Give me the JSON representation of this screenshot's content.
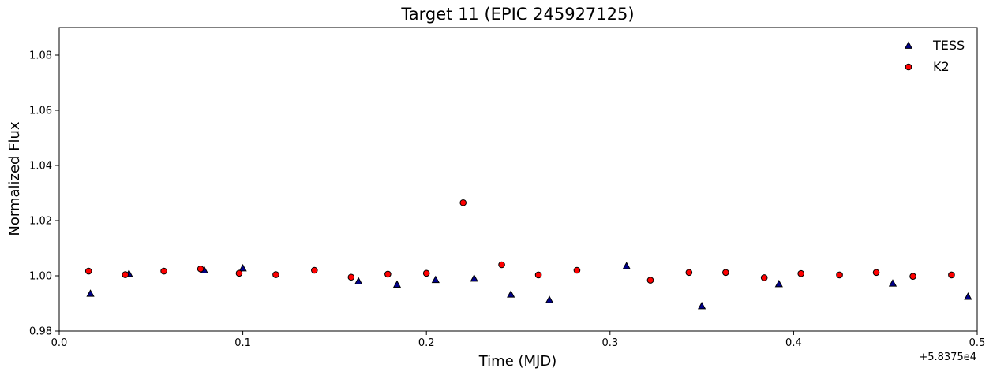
{
  "chart_data": {
    "type": "scatter",
    "title": "Target 11 (EPIC 245927125)",
    "xlabel": "Time (MJD)",
    "ylabel": "Normalized Flux",
    "x_offset_label": "+5.8375e4",
    "xlim": [
      0.0,
      0.5
    ],
    "ylim": [
      0.98,
      1.09
    ],
    "x_ticks": [
      0.0,
      0.1,
      0.2,
      0.3,
      0.4,
      0.5
    ],
    "x_tick_labels": [
      "0.0",
      "0.1",
      "0.2",
      "0.3",
      "0.4",
      "0.5"
    ],
    "y_ticks": [
      0.98,
      1.0,
      1.02,
      1.04,
      1.06,
      1.08
    ],
    "y_tick_labels": [
      "0.98",
      "1.00",
      "1.02",
      "1.04",
      "1.06",
      "1.08"
    ],
    "grid": false,
    "legend_position": "top-right",
    "series": [
      {
        "name": "TESS",
        "marker": "triangle",
        "color": "#00008b",
        "edge_color": "#000000",
        "x": [
          0.017,
          0.038,
          0.079,
          0.1,
          0.163,
          0.184,
          0.205,
          0.226,
          0.246,
          0.267,
          0.309,
          0.35,
          0.392,
          0.454,
          0.495
        ],
        "y": [
          0.9935,
          1.0007,
          1.002,
          1.0027,
          0.998,
          0.9968,
          0.9985,
          0.999,
          0.9932,
          0.9912,
          1.0035,
          0.989,
          0.997,
          0.9972,
          0.9924
        ]
      },
      {
        "name": "K2",
        "marker": "circle",
        "color": "#ff0000",
        "edge_color": "#000000",
        "x": [
          0.016,
          0.036,
          0.057,
          0.077,
          0.098,
          0.118,
          0.139,
          0.159,
          0.179,
          0.2,
          0.22,
          0.241,
          0.261,
          0.282,
          0.322,
          0.343,
          0.363,
          0.384,
          0.404,
          0.425,
          0.445,
          0.465,
          0.486
        ],
        "y": [
          1.0017,
          1.0004,
          1.0017,
          1.0025,
          1.0009,
          1.0004,
          1.002,
          0.9995,
          1.0006,
          1.0009,
          1.0265,
          1.004,
          1.0003,
          1.002,
          0.9984,
          1.0012,
          1.0012,
          0.9993,
          1.0008,
          1.0003,
          1.0012,
          0.9998,
          1.0003
        ]
      }
    ]
  }
}
